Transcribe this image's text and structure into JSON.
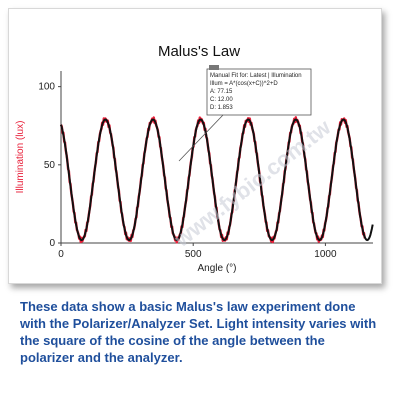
{
  "chart_data": {
    "type": "line",
    "title": "Malus's Law",
    "xlabel": "Angle (°)",
    "ylabel": "Illumination (lux)",
    "xlim": [
      0,
      1180
    ],
    "ylim": [
      0,
      110
    ],
    "xticks": [
      0,
      500,
      1000
    ],
    "yticks": [
      0,
      50,
      100
    ],
    "grid": false,
    "series": [
      {
        "name": "",
        "color": "#e8203a",
        "role": "measured data",
        "model": {
          "A": 77.15,
          "C": 12.0,
          "D": 1.853
        },
        "x_range": [
          0,
          1150
        ]
      },
      {
        "name": "",
        "color": "#111111",
        "role": "fit curve",
        "model": {
          "A": 77.15,
          "C": 12.0,
          "D": 1.853
        },
        "x_range": [
          0,
          1180
        ]
      }
    ],
    "legend": {
      "placement": "top-right",
      "heading": "Manual Fit for: Latest | Illumination",
      "equation": "Illum = A*(cos(x+C))^2+D",
      "params": [
        "A: 77.15",
        "C: 12.00",
        "D: 1.853"
      ]
    }
  },
  "watermark": "www.fybio.com.tw",
  "caption": "These data show a basic Malus's law experiment done with the Polarizer/Analyzer Set. Light intensity varies with the square of the cosine of the angle between the polarizer and the analyzer.",
  "colors": {
    "caption": "#1f4f9c",
    "data": "#e8203a",
    "fit": "#111111"
  }
}
